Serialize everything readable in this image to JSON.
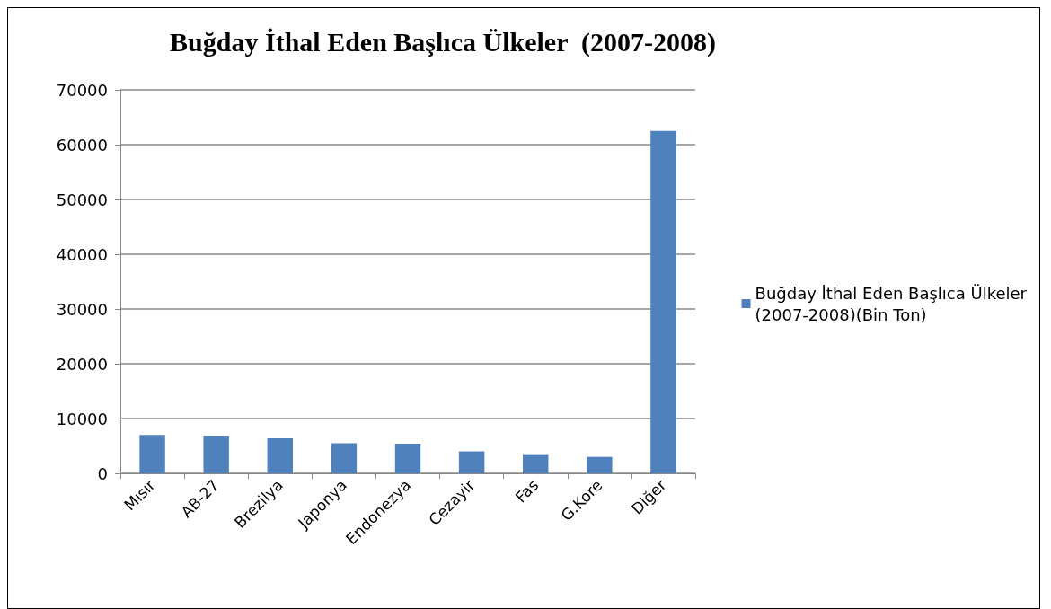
{
  "chart_data": {
    "type": "bar",
    "title": "Buğday İthal Eden Başlıca Ülkeler  (2007-2008)",
    "categories": [
      "Mısır",
      "AB-27",
      "Brezilya",
      "Japonya",
      "Endonezya",
      "Cezayir",
      "Fas",
      "G.Kore",
      "Diğer"
    ],
    "series": [
      {
        "name": "Buğday İthal Eden Başlıca Ülkeler (2007-2008)(Bin Ton)",
        "color": "#4f81bd",
        "values": [
          7000,
          6900,
          6400,
          5500,
          5400,
          4000,
          3500,
          3000,
          62500
        ]
      }
    ],
    "ylim": [
      0,
      70000
    ],
    "yticks": [
      0,
      10000,
      20000,
      30000,
      40000,
      50000,
      60000,
      70000
    ],
    "grid": "y",
    "legend": "right"
  }
}
